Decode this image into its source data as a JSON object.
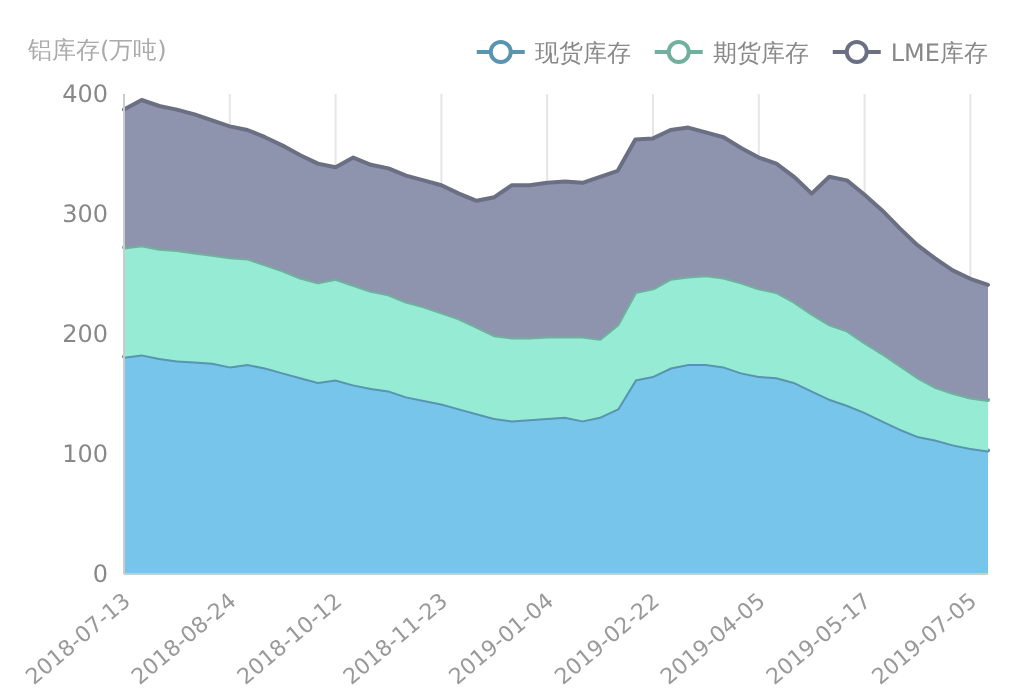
{
  "chart_data": {
    "type": "area",
    "stacked": true,
    "ylabel": "铝库存(万吨)",
    "legend": "top right",
    "grid": "x",
    "categories": [
      "2018-07-13",
      null,
      null,
      null,
      null,
      null,
      "2018-08-24",
      null,
      null,
      null,
      null,
      null,
      "2018-10-12",
      null,
      null,
      null,
      null,
      null,
      "2018-11-23",
      null,
      null,
      null,
      null,
      null,
      "2019-01-04",
      null,
      null,
      null,
      null,
      null,
      "2019-02-22",
      null,
      null,
      null,
      null,
      null,
      "2019-04-05",
      null,
      null,
      null,
      null,
      null,
      "2019-05-17",
      null,
      null,
      null,
      null,
      null,
      "2019-07-05",
      null
    ],
    "ylim": [
      0,
      400
    ],
    "yticks": [
      0,
      100,
      200,
      300,
      400
    ],
    "series": [
      {
        "name": "现货库存",
        "color": "#77c5eb",
        "values": [
          181,
          183,
          180,
          178,
          177,
          176,
          173,
          175,
          172,
          168,
          164,
          160,
          162,
          158,
          155,
          153,
          148,
          145,
          142,
          138,
          134,
          130,
          128,
          129,
          130,
          131,
          128,
          131,
          138,
          162,
          165,
          172,
          175,
          175,
          173,
          168,
          165,
          164,
          160,
          153,
          146,
          141,
          135,
          128,
          121,
          115,
          112,
          108,
          105,
          103
        ]
      },
      {
        "name": "期货库存",
        "color": "#95ebd3",
        "values": [
          91,
          91,
          91,
          92,
          91,
          90,
          91,
          88,
          86,
          85,
          83,
          83,
          84,
          83,
          81,
          80,
          79,
          78,
          76,
          75,
          72,
          69,
          69,
          68,
          68,
          67,
          70,
          65,
          70,
          73,
          73,
          74,
          73,
          74,
          74,
          75,
          73,
          71,
          67,
          64,
          62,
          62,
          58,
          56,
          53,
          49,
          44,
          43,
          42,
          42
        ]
      },
      {
        "name": "LME库存",
        "color": "#8e94ae",
        "values": [
          115,
          121,
          119,
          117,
          115,
          112,
          109,
          107,
          106,
          104,
          102,
          99,
          93,
          106,
          105,
          105,
          105,
          105,
          106,
          104,
          105,
          115,
          127,
          127,
          128,
          129,
          128,
          135,
          128,
          127,
          125,
          124,
          124,
          119,
          117,
          112,
          109,
          107,
          104,
          100,
          123,
          125,
          123,
          119,
          114,
          110,
          107,
          102,
          99,
          96
        ]
      }
    ]
  }
}
